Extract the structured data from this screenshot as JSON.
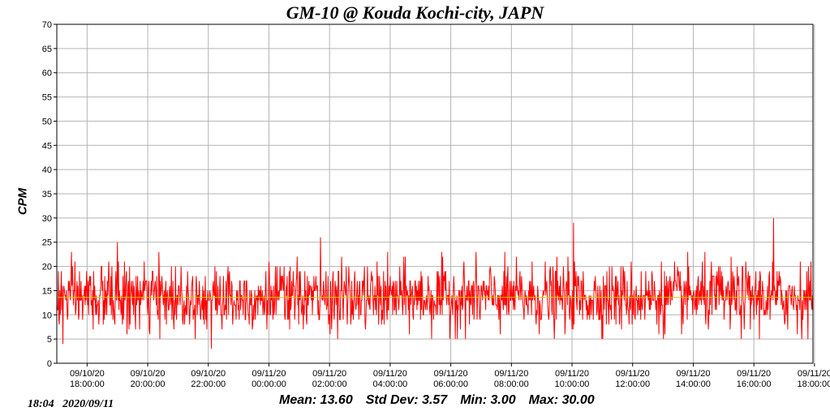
{
  "chart_data": {
    "type": "line",
    "title": "GM-10 @ Kouda Kochi-city, JAPN",
    "ylabel": "CPM",
    "xlabel": "",
    "ylim": [
      0,
      70
    ],
    "yticks": [
      0,
      5,
      10,
      15,
      20,
      25,
      30,
      35,
      40,
      45,
      50,
      55,
      60,
      65,
      70
    ],
    "x_start_hours": 17.0,
    "x_end_hours": 41.95,
    "xticks": [
      {
        "hours": 18,
        "date": "09/10/20",
        "time": "18:00:00"
      },
      {
        "hours": 20,
        "date": "09/10/20",
        "time": "20:00:00"
      },
      {
        "hours": 22,
        "date": "09/10/20",
        "time": "22:00:00"
      },
      {
        "hours": 24,
        "date": "09/11/20",
        "time": "00:00:00"
      },
      {
        "hours": 26,
        "date": "09/11/20",
        "time": "02:00:00"
      },
      {
        "hours": 28,
        "date": "09/11/20",
        "time": "04:00:00"
      },
      {
        "hours": 30,
        "date": "09/11/20",
        "time": "06:00:00"
      },
      {
        "hours": 32,
        "date": "09/11/20",
        "time": "08:00:00"
      },
      {
        "hours": 34,
        "date": "09/11/20",
        "time": "10:00:00"
      },
      {
        "hours": 36,
        "date": "09/11/20",
        "time": "12:00:00"
      },
      {
        "hours": 38,
        "date": "09/11/20",
        "time": "14:00:00"
      },
      {
        "hours": 40,
        "date": "09/11/20",
        "time": "16:00:00"
      },
      {
        "hours": 42,
        "date": "09/11/20",
        "time": "18:00:00"
      }
    ],
    "series": [
      {
        "name": "CPM",
        "color": "#ff0000",
        "sample_interval_min": 1,
        "mean": 13.6,
        "std": 3.57,
        "min": 3.0,
        "max": 30.0,
        "notable_points": [
          {
            "hours": 17.2,
            "value": 4
          },
          {
            "hours": 19.0,
            "value": 25
          },
          {
            "hours": 22.1,
            "value": 3
          },
          {
            "hours": 25.7,
            "value": 26
          },
          {
            "hours": 34.05,
            "value": 29
          },
          {
            "hours": 40.65,
            "value": 30
          }
        ]
      }
    ],
    "mean_line": {
      "value": 13.6,
      "color": "#cccc00"
    },
    "grid": true
  },
  "footer": {
    "timestamp": "18:04   2020/09/11",
    "mean": "Mean: 13.60",
    "std": "Std Dev: 3.57",
    "min": "Min: 3.00",
    "max": "Max: 30.00"
  }
}
